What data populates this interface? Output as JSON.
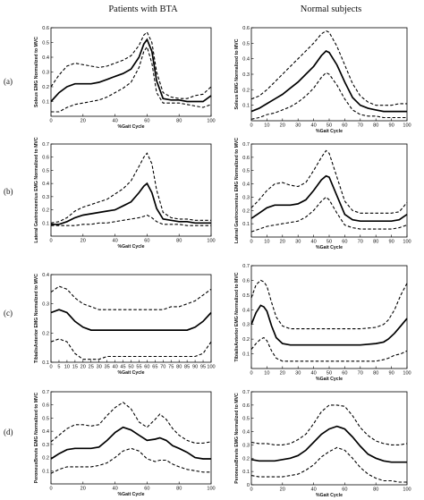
{
  "headers": {
    "left": "Patients with BTA",
    "right": "Normal subjects"
  },
  "row_labels": [
    "(a)",
    "(b)",
    "(c)",
    "(d)"
  ],
  "chart_data": [
    {
      "type": "line",
      "row": 0,
      "col": 0,
      "xlabel": "%Gait Cycle",
      "ylabel": "Soleus EMG Normalized to MVC",
      "xlim": [
        0,
        100
      ],
      "ylim": [
        0,
        0.6
      ],
      "xticks": [
        0,
        20,
        40,
        60,
        80,
        100
      ],
      "yticks": [
        0.1,
        0.2,
        0.3,
        0.4,
        0.5,
        0.6
      ],
      "x": [
        0,
        5,
        10,
        15,
        20,
        25,
        30,
        35,
        40,
        45,
        50,
        55,
        58,
        60,
        63,
        66,
        70,
        75,
        80,
        85,
        90,
        95,
        100
      ],
      "series": [
        {
          "role": "upper",
          "values": [
            0.2,
            0.28,
            0.34,
            0.36,
            0.35,
            0.34,
            0.33,
            0.34,
            0.36,
            0.38,
            0.41,
            0.48,
            0.55,
            0.57,
            0.5,
            0.3,
            0.16,
            0.13,
            0.12,
            0.12,
            0.14,
            0.15,
            0.2
          ]
        },
        {
          "role": "mean",
          "values": [
            0.1,
            0.16,
            0.2,
            0.22,
            0.22,
            0.22,
            0.23,
            0.25,
            0.27,
            0.29,
            0.32,
            0.4,
            0.49,
            0.52,
            0.44,
            0.24,
            0.12,
            0.11,
            0.11,
            0.1,
            0.1,
            0.1,
            0.14
          ]
        },
        {
          "role": "lower",
          "values": [
            0.03,
            0.03,
            0.06,
            0.08,
            0.09,
            0.1,
            0.11,
            0.13,
            0.16,
            0.19,
            0.23,
            0.33,
            0.44,
            0.47,
            0.36,
            0.16,
            0.09,
            0.09,
            0.09,
            0.08,
            0.07,
            0.06,
            0.08
          ]
        }
      ]
    },
    {
      "type": "line",
      "row": 0,
      "col": 1,
      "xlabel": "%Gait Cycle",
      "ylabel": "Soleus EMG Normalized to MVC",
      "xlim": [
        0,
        100
      ],
      "ylim": [
        0,
        0.6
      ],
      "xticks": [
        0,
        10,
        20,
        30,
        40,
        50,
        60,
        70,
        80,
        90,
        100
      ],
      "yticks": [
        0.1,
        0.2,
        0.3,
        0.4,
        0.5,
        0.6
      ],
      "x": [
        0,
        5,
        10,
        15,
        20,
        25,
        30,
        35,
        40,
        45,
        48,
        50,
        55,
        60,
        65,
        70,
        75,
        80,
        85,
        90,
        95,
        100
      ],
      "series": [
        {
          "role": "upper",
          "values": [
            0.14,
            0.16,
            0.2,
            0.25,
            0.3,
            0.35,
            0.4,
            0.45,
            0.5,
            0.56,
            0.58,
            0.57,
            0.48,
            0.36,
            0.24,
            0.16,
            0.12,
            0.1,
            0.1,
            0.1,
            0.11,
            0.11
          ]
        },
        {
          "role": "mean",
          "values": [
            0.06,
            0.08,
            0.11,
            0.14,
            0.17,
            0.21,
            0.25,
            0.3,
            0.35,
            0.42,
            0.45,
            0.44,
            0.36,
            0.25,
            0.15,
            0.1,
            0.08,
            0.07,
            0.06,
            0.06,
            0.06,
            0.06
          ]
        },
        {
          "role": "lower",
          "values": [
            0.01,
            0.02,
            0.04,
            0.05,
            0.07,
            0.09,
            0.12,
            0.16,
            0.21,
            0.28,
            0.31,
            0.3,
            0.23,
            0.14,
            0.07,
            0.04,
            0.03,
            0.03,
            0.02,
            0.02,
            0.02,
            0.02
          ]
        }
      ]
    },
    {
      "type": "line",
      "row": 1,
      "col": 0,
      "xlabel": "%Gait Cycle",
      "ylabel": "Lateral Gastrocnemius EMG Normalized to MVC",
      "xlim": [
        0,
        100
      ],
      "ylim": [
        0,
        0.7
      ],
      "xticks": [
        0,
        20,
        40,
        60,
        80,
        100
      ],
      "yticks": [
        0.1,
        0.2,
        0.3,
        0.4,
        0.5,
        0.6,
        0.7
      ],
      "x": [
        0,
        5,
        10,
        15,
        20,
        25,
        30,
        35,
        40,
        45,
        50,
        55,
        58,
        60,
        63,
        66,
        70,
        75,
        80,
        85,
        90,
        95,
        100
      ],
      "series": [
        {
          "role": "upper",
          "values": [
            0.1,
            0.11,
            0.14,
            0.19,
            0.22,
            0.24,
            0.26,
            0.28,
            0.32,
            0.36,
            0.42,
            0.53,
            0.6,
            0.63,
            0.55,
            0.35,
            0.18,
            0.14,
            0.13,
            0.13,
            0.12,
            0.12,
            0.12
          ]
        },
        {
          "role": "mean",
          "values": [
            0.09,
            0.09,
            0.11,
            0.14,
            0.16,
            0.17,
            0.18,
            0.19,
            0.2,
            0.23,
            0.26,
            0.33,
            0.38,
            0.4,
            0.33,
            0.21,
            0.13,
            0.12,
            0.11,
            0.11,
            0.1,
            0.1,
            0.1
          ]
        },
        {
          "role": "lower",
          "values": [
            0.08,
            0.08,
            0.08,
            0.08,
            0.09,
            0.09,
            0.1,
            0.1,
            0.11,
            0.12,
            0.13,
            0.14,
            0.15,
            0.16,
            0.14,
            0.11,
            0.09,
            0.09,
            0.09,
            0.08,
            0.08,
            0.08,
            0.08
          ]
        }
      ]
    },
    {
      "type": "line",
      "row": 1,
      "col": 1,
      "xlabel": "%Gait Cycle",
      "ylabel": "Lateral Gastrocnemius EMG Normalized to MVC",
      "xlim": [
        0,
        100
      ],
      "ylim": [
        0,
        0.7
      ],
      "xticks": [
        0,
        10,
        20,
        30,
        40,
        50,
        60,
        70,
        80,
        90,
        100
      ],
      "yticks": [
        0.1,
        0.2,
        0.3,
        0.4,
        0.5,
        0.6,
        0.7
      ],
      "x": [
        0,
        5,
        10,
        15,
        20,
        25,
        30,
        35,
        40,
        45,
        48,
        50,
        55,
        60,
        65,
        70,
        75,
        80,
        85,
        90,
        95,
        100
      ],
      "series": [
        {
          "role": "upper",
          "values": [
            0.22,
            0.28,
            0.35,
            0.4,
            0.41,
            0.39,
            0.38,
            0.41,
            0.5,
            0.6,
            0.65,
            0.63,
            0.45,
            0.27,
            0.2,
            0.18,
            0.18,
            0.18,
            0.18,
            0.18,
            0.19,
            0.26
          ]
        },
        {
          "role": "mean",
          "values": [
            0.14,
            0.18,
            0.22,
            0.24,
            0.24,
            0.24,
            0.25,
            0.28,
            0.35,
            0.43,
            0.46,
            0.45,
            0.31,
            0.17,
            0.13,
            0.12,
            0.12,
            0.12,
            0.12,
            0.12,
            0.13,
            0.17
          ]
        },
        {
          "role": "lower",
          "values": [
            0.04,
            0.06,
            0.08,
            0.09,
            0.1,
            0.11,
            0.12,
            0.15,
            0.2,
            0.27,
            0.3,
            0.28,
            0.18,
            0.09,
            0.07,
            0.06,
            0.06,
            0.06,
            0.06,
            0.06,
            0.07,
            0.09
          ]
        }
      ]
    },
    {
      "type": "line",
      "row": 2,
      "col": 0,
      "xlabel": "%Gait Cycle",
      "ylabel": "TibialisAnterior EMG Normalized to MVC",
      "xlim": [
        0,
        100
      ],
      "ylim": [
        0.1,
        0.4
      ],
      "xticks": [
        0,
        5,
        10,
        15,
        20,
        25,
        30,
        35,
        40,
        45,
        50,
        55,
        60,
        65,
        70,
        75,
        80,
        85,
        90,
        95,
        100
      ],
      "yticks": [
        0.1,
        0.2,
        0.3,
        0.4
      ],
      "x": [
        0,
        5,
        10,
        15,
        20,
        25,
        30,
        35,
        40,
        45,
        50,
        55,
        60,
        65,
        70,
        75,
        80,
        85,
        90,
        95,
        100
      ],
      "series": [
        {
          "role": "upper",
          "values": [
            0.34,
            0.36,
            0.35,
            0.32,
            0.3,
            0.29,
            0.28,
            0.28,
            0.28,
            0.28,
            0.28,
            0.28,
            0.28,
            0.28,
            0.28,
            0.29,
            0.29,
            0.3,
            0.31,
            0.33,
            0.35
          ]
        },
        {
          "role": "mean",
          "values": [
            0.27,
            0.28,
            0.27,
            0.24,
            0.22,
            0.21,
            0.21,
            0.21,
            0.21,
            0.21,
            0.21,
            0.21,
            0.21,
            0.21,
            0.21,
            0.21,
            0.21,
            0.21,
            0.22,
            0.24,
            0.27
          ]
        },
        {
          "role": "lower",
          "values": [
            0.17,
            0.18,
            0.17,
            0.13,
            0.11,
            0.11,
            0.11,
            0.12,
            0.12,
            0.12,
            0.12,
            0.12,
            0.12,
            0.12,
            0.12,
            0.12,
            0.12,
            0.12,
            0.12,
            0.13,
            0.17
          ]
        }
      ]
    },
    {
      "type": "line",
      "row": 2,
      "col": 1,
      "xlabel": "%Gait Cycle",
      "ylabel": "TibialisAnterior EMG Normalized to MVC",
      "xlim": [
        0,
        100
      ],
      "ylim": [
        0,
        0.7
      ],
      "xticks": [
        0,
        10,
        20,
        30,
        40,
        50,
        60,
        70,
        80,
        90,
        100
      ],
      "yticks": [
        0.1,
        0.2,
        0.3,
        0.4,
        0.5,
        0.6,
        0.7
      ],
      "x": [
        0,
        3,
        6,
        8,
        10,
        13,
        16,
        20,
        25,
        30,
        35,
        40,
        50,
        60,
        70,
        80,
        85,
        88,
        92,
        96,
        100
      ],
      "series": [
        {
          "role": "upper",
          "values": [
            0.48,
            0.57,
            0.6,
            0.59,
            0.56,
            0.45,
            0.35,
            0.29,
            0.27,
            0.27,
            0.27,
            0.27,
            0.27,
            0.27,
            0.27,
            0.28,
            0.3,
            0.33,
            0.4,
            0.5,
            0.58
          ]
        },
        {
          "role": "mean",
          "values": [
            0.3,
            0.38,
            0.43,
            0.42,
            0.39,
            0.29,
            0.21,
            0.17,
            0.16,
            0.16,
            0.16,
            0.16,
            0.16,
            0.16,
            0.16,
            0.17,
            0.18,
            0.2,
            0.24,
            0.29,
            0.34
          ]
        },
        {
          "role": "lower",
          "values": [
            0.13,
            0.17,
            0.2,
            0.21,
            0.19,
            0.12,
            0.07,
            0.05,
            0.05,
            0.05,
            0.05,
            0.05,
            0.05,
            0.05,
            0.05,
            0.05,
            0.06,
            0.07,
            0.09,
            0.1,
            0.12
          ]
        }
      ]
    },
    {
      "type": "line",
      "row": 3,
      "col": 0,
      "xlabel": "%Gait Cycle",
      "ylabel": "PeroneusBrevis EMG Normalized to MVC",
      "xlim": [
        0,
        100
      ],
      "ylim": [
        0,
        0.7
      ],
      "xticks": [
        0,
        20,
        40,
        60,
        80,
        100
      ],
      "yticks": [
        0.1,
        0.2,
        0.3,
        0.4,
        0.5,
        0.6,
        0.7
      ],
      "x": [
        0,
        5,
        10,
        15,
        20,
        25,
        30,
        35,
        40,
        45,
        50,
        55,
        60,
        65,
        68,
        72,
        76,
        80,
        85,
        90,
        95,
        100
      ],
      "series": [
        {
          "role": "upper",
          "values": [
            0.32,
            0.37,
            0.42,
            0.45,
            0.45,
            0.44,
            0.45,
            0.52,
            0.58,
            0.62,
            0.57,
            0.47,
            0.43,
            0.49,
            0.53,
            0.49,
            0.42,
            0.37,
            0.33,
            0.31,
            0.31,
            0.32
          ]
        },
        {
          "role": "mean",
          "values": [
            0.19,
            0.23,
            0.26,
            0.27,
            0.27,
            0.27,
            0.28,
            0.33,
            0.39,
            0.43,
            0.41,
            0.37,
            0.33,
            0.34,
            0.35,
            0.33,
            0.29,
            0.27,
            0.24,
            0.2,
            0.19,
            0.19
          ]
        },
        {
          "role": "lower",
          "values": [
            0.08,
            0.11,
            0.13,
            0.13,
            0.13,
            0.13,
            0.14,
            0.16,
            0.2,
            0.25,
            0.27,
            0.25,
            0.19,
            0.17,
            0.18,
            0.18,
            0.15,
            0.13,
            0.11,
            0.1,
            0.09,
            0.09
          ]
        }
      ]
    },
    {
      "type": "line",
      "row": 3,
      "col": 1,
      "xlabel": "%Gait Cycle",
      "ylabel": "PeroneusBrevis EMG Normalized to MVC",
      "xlim": [
        0,
        100
      ],
      "ylim": [
        0,
        0.7
      ],
      "xticks": [
        0,
        20,
        40,
        60,
        80,
        100
      ],
      "yticks": [
        0,
        0.1,
        0.2,
        0.3,
        0.4,
        0.5,
        0.6,
        0.7
      ],
      "x": [
        0,
        5,
        10,
        15,
        20,
        25,
        30,
        35,
        40,
        45,
        50,
        55,
        60,
        65,
        70,
        75,
        80,
        85,
        90,
        95,
        100
      ],
      "series": [
        {
          "role": "upper",
          "values": [
            0.32,
            0.31,
            0.31,
            0.3,
            0.3,
            0.31,
            0.34,
            0.38,
            0.46,
            0.55,
            0.6,
            0.6,
            0.59,
            0.52,
            0.43,
            0.37,
            0.33,
            0.31,
            0.3,
            0.3,
            0.31
          ]
        },
        {
          "role": "mean",
          "values": [
            0.19,
            0.18,
            0.18,
            0.18,
            0.19,
            0.2,
            0.22,
            0.26,
            0.32,
            0.38,
            0.42,
            0.44,
            0.42,
            0.36,
            0.29,
            0.23,
            0.2,
            0.18,
            0.17,
            0.17,
            0.17
          ]
        },
        {
          "role": "lower",
          "values": [
            0.07,
            0.06,
            0.06,
            0.06,
            0.06,
            0.07,
            0.08,
            0.11,
            0.15,
            0.21,
            0.25,
            0.28,
            0.26,
            0.2,
            0.13,
            0.08,
            0.05,
            0.03,
            0.03,
            0.02,
            0.02
          ]
        }
      ]
    }
  ]
}
